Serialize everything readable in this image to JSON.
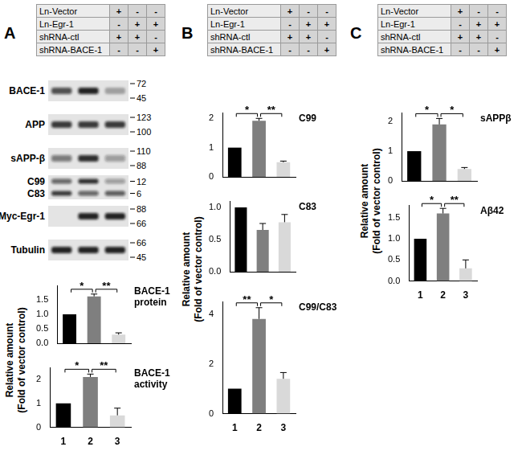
{
  "panels": [
    {
      "label": "A",
      "y_label": [
        "Relative amount",
        "(Fold of vector control)"
      ],
      "conditions": [
        {
          "name": "Ln-Vector",
          "marks": [
            "+",
            "-",
            "-"
          ]
        },
        {
          "name": "Ln-Egr-1",
          "marks": [
            "-",
            "+",
            "+"
          ]
        },
        {
          "name": "shRNA-ctl",
          "marks": [
            "+",
            "+",
            "-"
          ]
        },
        {
          "name": "shRNA-BACE-1",
          "marks": [
            "-",
            "-",
            "+"
          ]
        }
      ],
      "blot": [
        {
          "label": "BACE-1",
          "markers": [
            72,
            45
          ],
          "bands": [
            0.7,
            0.9,
            0.3
          ]
        },
        {
          "label": "APP",
          "markers": [
            123,
            100
          ],
          "bands": [
            0.8,
            0.8,
            0.8
          ]
        },
        {
          "label": "sAPP-β",
          "markers": [
            110,
            88
          ],
          "bands": [
            0.5,
            0.85,
            0.35
          ]
        },
        {
          "label": "C99",
          "markers": [
            12
          ],
          "bands": [
            0.6,
            0.85,
            0.35
          ]
        },
        {
          "label": "C83",
          "markers": [
            6
          ],
          "bands": [
            0.8,
            0.6,
            0.65
          ]
        },
        {
          "label": "Myc-Egr-1",
          "markers": [
            88,
            66
          ],
          "bands": [
            0,
            0.9,
            0.9
          ]
        },
        {
          "label": "Tubulin",
          "markers": [
            66,
            45
          ],
          "bands": [
            0.9,
            0.9,
            0.9
          ]
        }
      ]
    },
    {
      "label": "B",
      "y_label": [
        "Relative amount",
        "(Fold of vector control)"
      ],
      "conditions": [
        {
          "name": "Ln-Vector",
          "marks": [
            "+",
            "-",
            "-"
          ]
        },
        {
          "name": "Ln-Egr-1",
          "marks": [
            "-",
            "+",
            "+"
          ]
        },
        {
          "name": "shRNA-ctl",
          "marks": [
            "+",
            "+",
            "-"
          ]
        },
        {
          "name": "shRNA-BACE-1",
          "marks": [
            "-",
            "-",
            "+"
          ]
        }
      ]
    },
    {
      "label": "C",
      "y_label": [
        "Relative amount",
        "(Fold of vector control)"
      ],
      "conditions": [
        {
          "name": "Ln-Vector",
          "marks": [
            "+",
            "-",
            "-"
          ]
        },
        {
          "name": "Ln-Egr-1",
          "marks": [
            "-",
            "+",
            "+"
          ]
        },
        {
          "name": "shRNA-ctl",
          "marks": [
            "+",
            "+",
            "-"
          ]
        },
        {
          "name": "shRNA-BACE-1",
          "marks": [
            "-",
            "-",
            "+"
          ]
        }
      ]
    }
  ],
  "chart_data": [
    {
      "panel": "A",
      "type": "bar",
      "title": "BACE-1 protein",
      "categories": [
        null,
        null,
        null
      ],
      "values": [
        1,
        1.62,
        0.3
      ],
      "error": [
        0,
        0.08,
        0.06
      ],
      "colors": [
        "#000000",
        "#7f7f7f",
        "#d9d9d9"
      ],
      "ylim": [
        0,
        2
      ],
      "yticks": [
        {
          "value": 0,
          "label": "0.0"
        },
        {
          "value": 0.5,
          "label": "0.5"
        },
        {
          "value": 1,
          "label": "1.0"
        },
        {
          "value": 1.5,
          "label": "1.5"
        }
      ],
      "grid": false,
      "tick_labels": "y",
      "annotations": [
        {
          "from": 0,
          "to": 1,
          "text": "*"
        },
        {
          "from": 1,
          "to": 2,
          "text": "**"
        }
      ]
    },
    {
      "panel": "A",
      "type": "bar",
      "title": "BACE-1 activity",
      "categories": [
        "1",
        "2",
        "3"
      ],
      "values": [
        1,
        2.1,
        0.5
      ],
      "error": [
        0,
        0.12,
        0.3
      ],
      "colors": [
        "#000000",
        "#7f7f7f",
        "#d9d9d9"
      ],
      "ylim": [
        0,
        2.5
      ],
      "yticks": [
        0,
        1,
        2
      ],
      "grid": false,
      "annotations": [
        {
          "from": 0,
          "to": 1,
          "text": "*"
        },
        {
          "from": 1,
          "to": 2,
          "text": "**"
        }
      ]
    },
    {
      "panel": "B",
      "type": "bar",
      "title": "C99",
      "categories": [
        null,
        null,
        null
      ],
      "values": [
        1,
        1.92,
        0.5
      ],
      "error": [
        0,
        0.08,
        0.04
      ],
      "colors": [
        "#000000",
        "#7f7f7f",
        "#d9d9d9"
      ],
      "ylim": [
        0,
        2.2
      ],
      "yticks": [
        0,
        1,
        2
      ],
      "grid": false,
      "tick_labels": "y",
      "annotations": [
        {
          "from": 0,
          "to": 1,
          "text": "*"
        },
        {
          "from": 1,
          "to": 2,
          "text": "**"
        }
      ]
    },
    {
      "panel": "B",
      "type": "bar",
      "title": "C83",
      "categories": [
        null,
        null,
        null
      ],
      "values": [
        1,
        0.65,
        0.77
      ],
      "error": [
        0,
        0.1,
        0.12
      ],
      "colors": [
        "#000000",
        "#7f7f7f",
        "#d9d9d9"
      ],
      "ylim": [
        0,
        1.1
      ],
      "yticks": [
        {
          "value": 0,
          "label": "0.0"
        },
        {
          "value": 0.5,
          "label": "0.5"
        },
        {
          "value": 1,
          "label": "1.0"
        }
      ],
      "grid": false,
      "tick_labels": "y",
      "annotations": []
    },
    {
      "panel": "B",
      "type": "bar",
      "title": "C99/C83",
      "categories": [
        "1",
        "2",
        "3"
      ],
      "values": [
        1,
        3.8,
        1.4
      ],
      "error": [
        0,
        0.45,
        0.25
      ],
      "colors": [
        "#000000",
        "#7f7f7f",
        "#d9d9d9"
      ],
      "ylim": [
        0,
        4.5
      ],
      "yticks": [
        0,
        2,
        4
      ],
      "grid": false,
      "annotations": [
        {
          "from": 0,
          "to": 1,
          "text": "**"
        },
        {
          "from": 1,
          "to": 2,
          "text": "*"
        }
      ]
    },
    {
      "panel": "C",
      "type": "bar",
      "title": "sAPPβ",
      "categories": [
        null,
        null,
        null
      ],
      "values": [
        1,
        1.9,
        0.4
      ],
      "error": [
        0,
        0.2,
        0.05
      ],
      "colors": [
        "#000000",
        "#7f7f7f",
        "#d9d9d9"
      ],
      "ylim": [
        0,
        2.3
      ],
      "yticks": [
        0,
        1,
        2
      ],
      "grid": false,
      "tick_labels": "y",
      "annotations": [
        {
          "from": 0,
          "to": 1,
          "text": "*"
        },
        {
          "from": 1,
          "to": 2,
          "text": "*"
        }
      ]
    },
    {
      "panel": "C",
      "type": "bar",
      "title": "Aβ42",
      "categories": [
        "1",
        "2",
        "3"
      ],
      "values": [
        1,
        1.6,
        0.3
      ],
      "error": [
        0,
        0.12,
        0.2
      ],
      "colors": [
        "#000000",
        "#7f7f7f",
        "#d9d9d9"
      ],
      "ylim": [
        0,
        1.8
      ],
      "yticks": [
        {
          "value": 0,
          "label": "0.0"
        },
        {
          "value": 0.5,
          "label": "0.5"
        },
        {
          "value": 1,
          "label": "1.0"
        },
        {
          "value": 1.5,
          "label": "1.5"
        }
      ],
      "grid": false,
      "annotations": [
        {
          "from": 0,
          "to": 1,
          "text": "*"
        },
        {
          "from": 1,
          "to": 2,
          "text": "**"
        }
      ]
    }
  ]
}
